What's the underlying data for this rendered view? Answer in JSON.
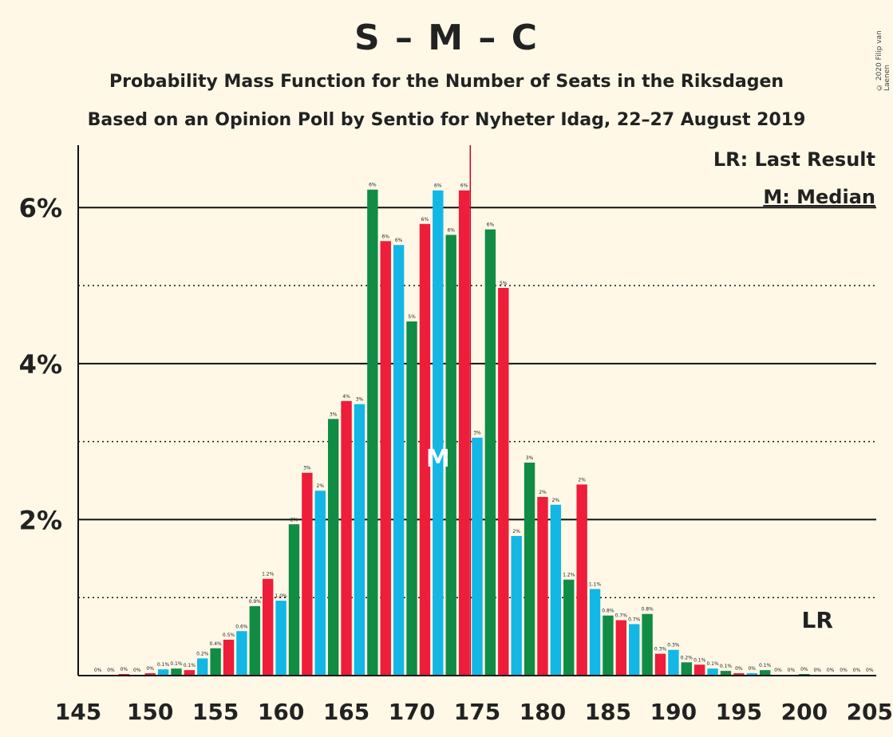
{
  "title": "S – M – C",
  "subtitle": "Probability Mass Function for the Number of Seats in the Riksdagen",
  "subtitle2": "Based on an Opinion Poll by Sentio for Nyheter Idag, 22–27 August 2019",
  "copyright": "© 2020 Filip van Laenen",
  "legend": {
    "lr": "LR: Last Result",
    "m": "M: Median"
  },
  "markers": {
    "median_label": "M",
    "last_result_label": "LR",
    "median_seat": 172,
    "last_result_seat": 201,
    "majority_seat": 175
  },
  "colors": {
    "background": "#FFF8E7",
    "blue": "#12B7E5",
    "green": "#108C44",
    "red": "#EE1D3A",
    "majority_line": "#CC0022"
  },
  "chart_data": {
    "type": "bar",
    "xlim": [
      145,
      205
    ],
    "ylim": [
      0,
      0.068
    ],
    "x_ticks": [
      "145",
      "150",
      "155",
      "160",
      "165",
      "170",
      "175",
      "180",
      "185",
      "190",
      "195",
      "200",
      "205"
    ],
    "y_ticks": [
      "2%",
      "4%",
      "6%"
    ],
    "x": [
      146,
      147,
      148,
      149,
      150,
      151,
      152,
      153,
      154,
      155,
      156,
      157,
      158,
      159,
      160,
      161,
      162,
      163,
      164,
      165,
      166,
      167,
      168,
      169,
      170,
      171,
      172,
      173,
      174,
      175,
      176,
      177,
      178,
      179,
      180,
      181,
      182,
      183,
      184,
      185,
      186,
      187,
      188,
      189,
      190,
      191,
      192,
      193,
      194,
      195,
      196,
      197,
      198,
      199,
      200,
      201,
      202,
      203,
      204,
      205
    ],
    "values": [
      0.0001,
      0.0001,
      0.0002,
      0.0001,
      0.0003,
      0.0008,
      0.0009,
      0.0007,
      0.0022,
      0.0035,
      0.0046,
      0.0057,
      0.0089,
      0.0124,
      0.0096,
      0.0194,
      0.026,
      0.0237,
      0.0329,
      0.0352,
      0.0348,
      0.0623,
      0.0557,
      0.0552,
      0.0454,
      0.0579,
      0.0622,
      0.0565,
      0.0622,
      0.0305,
      0.0572,
      0.0497,
      0.0179,
      0.0273,
      0.0229,
      0.0219,
      0.0123,
      0.0245,
      0.0111,
      0.0077,
      0.0071,
      0.0066,
      0.0079,
      0.0028,
      0.0033,
      0.0017,
      0.0014,
      0.0009,
      0.0006,
      0.0003,
      0.0003,
      0.0007,
      0.0001,
      0.0001,
      0.0002,
      0.0001,
      0.0001,
      0.0001,
      0.0001,
      0.0001
    ],
    "labels": [
      "0%",
      "0%",
      "0%",
      "0%",
      "0%",
      "0.1%",
      "0.1%",
      "0.1%",
      "0.2%",
      "0.4%",
      "0.5%",
      "0.6%",
      "0.9%",
      "1.2%",
      "1.0%",
      "2%",
      "3%",
      "2%",
      "3%",
      "4%",
      "3%",
      "6%",
      "6%",
      "6%",
      "5%",
      "6%",
      "6%",
      "6%",
      "6%",
      "3%",
      "6%",
      "5%",
      "2%",
      "3%",
      "2%",
      "2%",
      "1.2%",
      "2%",
      "1.1%",
      "0.8%",
      "0.7%",
      "0.7%",
      "0.8%",
      "0.3%",
      "0.3%",
      "0.2%",
      "0.1%",
      "0.1%",
      "0.1%",
      "0%",
      "0%",
      "0.1%",
      "0%",
      "0%",
      "0%",
      "0%",
      "0%",
      "0%",
      "0%",
      "0%"
    ],
    "bar_colors": [
      "blue",
      "green",
      "red",
      "blue",
      "red",
      "blue",
      "green",
      "red",
      "blue",
      "green",
      "red",
      "blue",
      "green",
      "red",
      "blue",
      "green",
      "red",
      "blue",
      "green",
      "red",
      "blue",
      "green",
      "red",
      "blue",
      "green",
      "red",
      "blue",
      "green",
      "red",
      "blue",
      "green",
      "red",
      "blue",
      "green",
      "red",
      "blue",
      "green",
      "red",
      "blue",
      "green",
      "red",
      "blue",
      "green",
      "red",
      "blue",
      "green",
      "red",
      "blue",
      "green",
      "red",
      "blue",
      "green",
      "red",
      "blue",
      "green",
      "red",
      "blue",
      "green",
      "red",
      "blue"
    ]
  }
}
